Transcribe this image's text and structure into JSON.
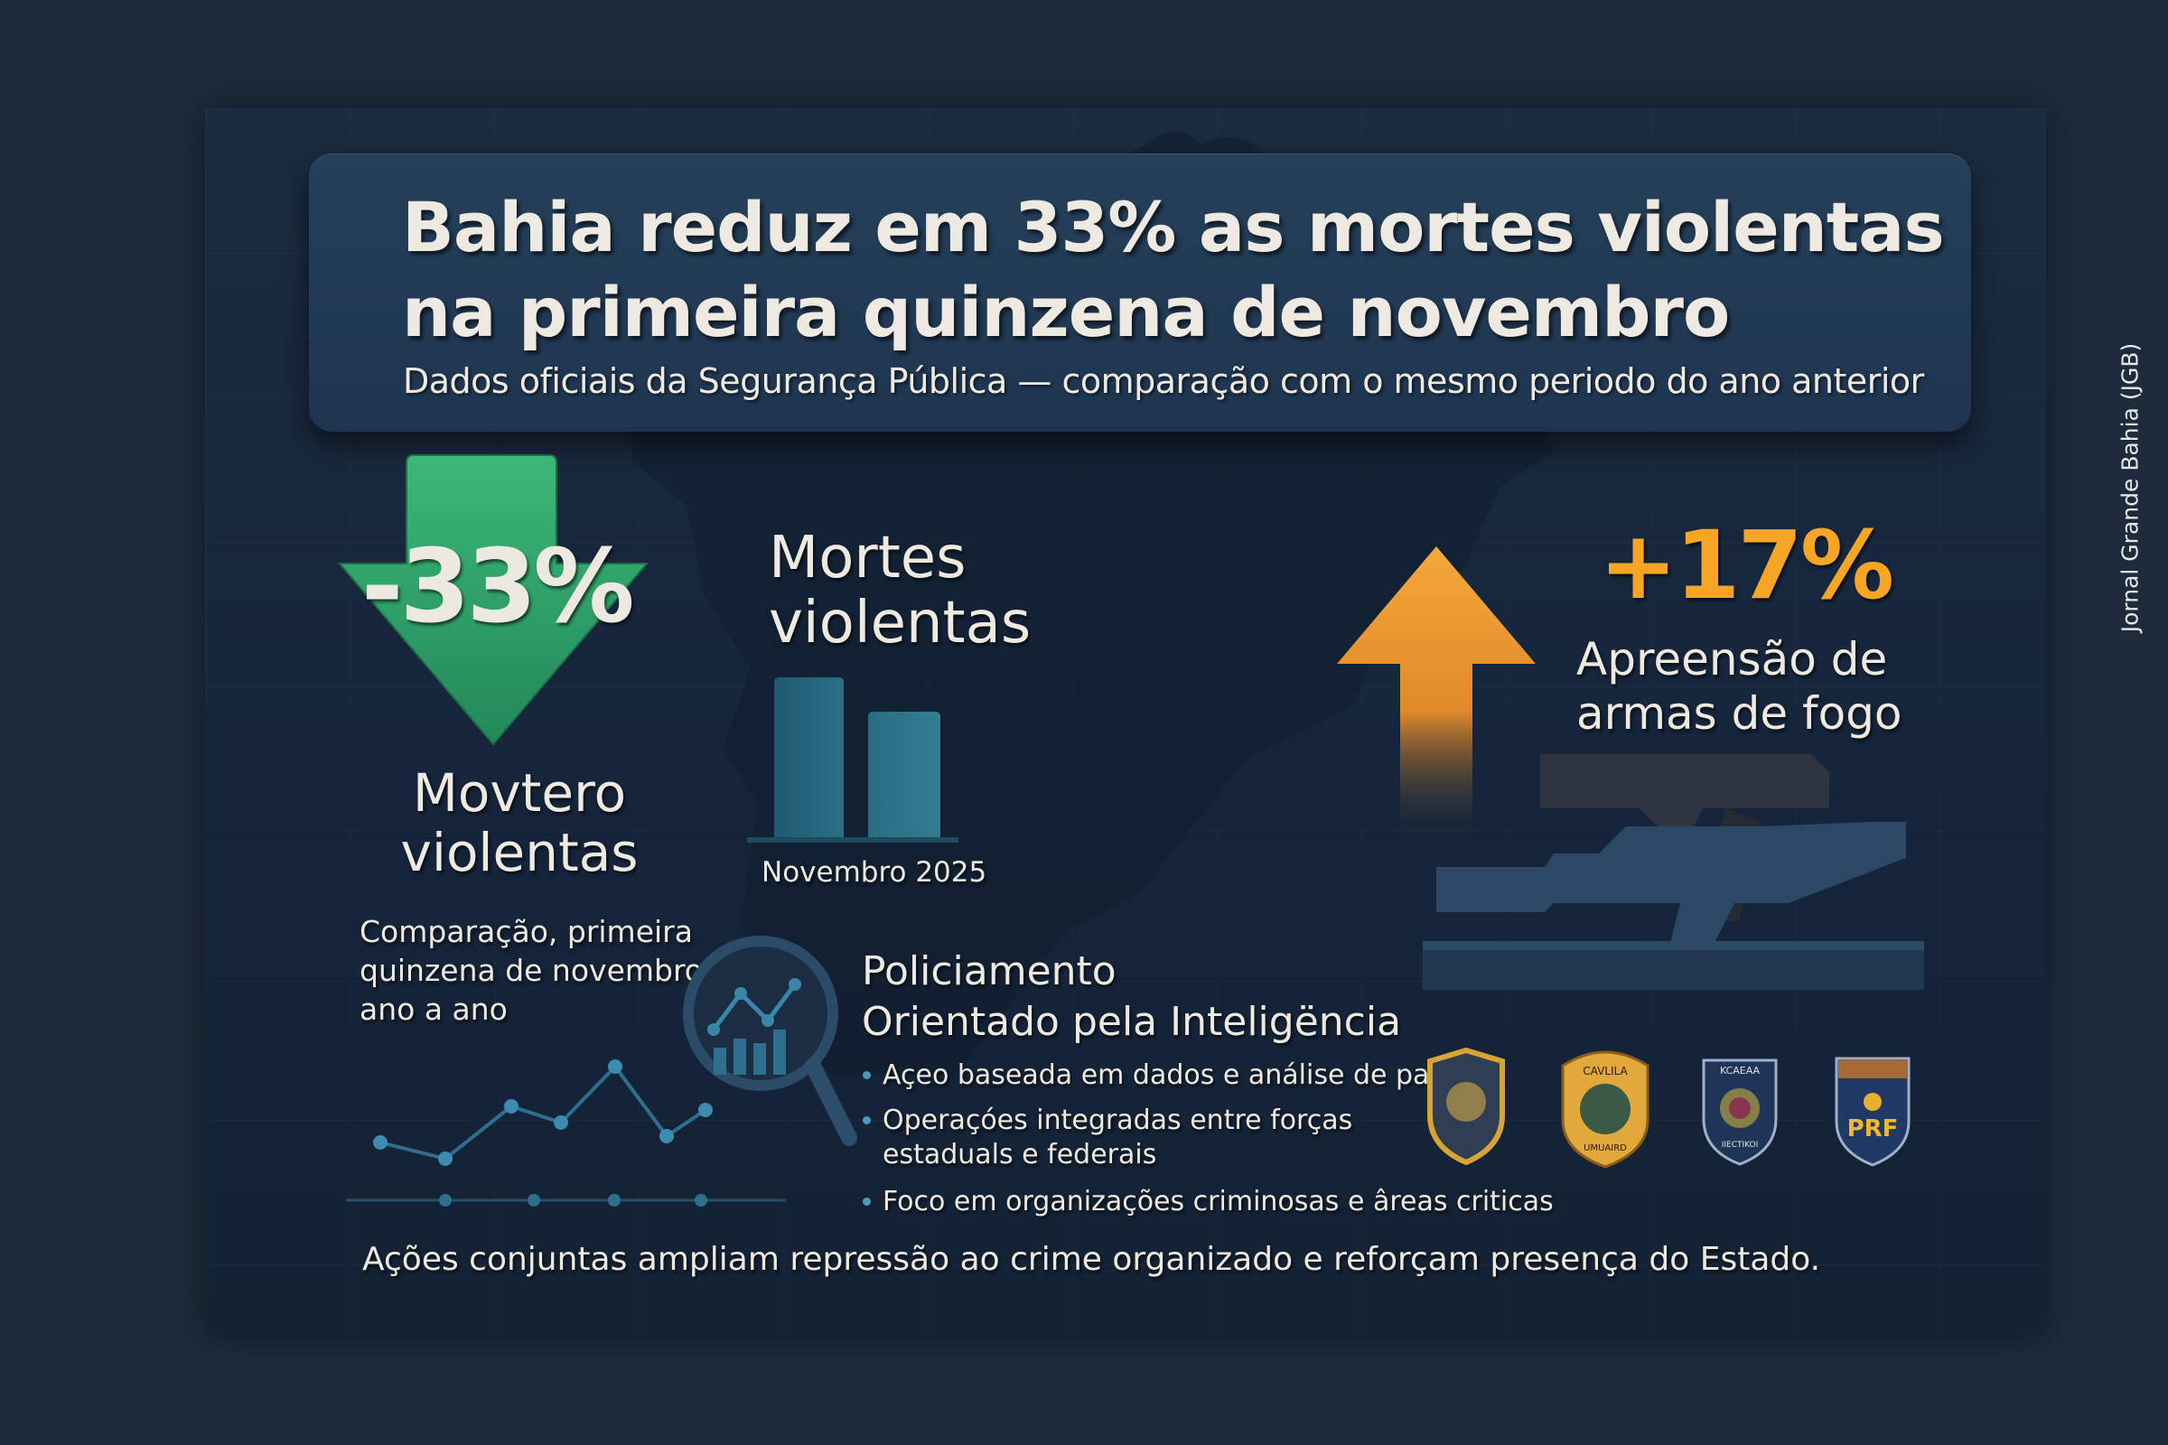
{
  "header": {
    "title_line1": "Bahia reduz em 33% as mortes violentas",
    "title_line2": "na primeira quinzena de novembro",
    "subtitle": "Dados oficiais da Segurança Pública — comparação com o mesmo periodo do ano anterior"
  },
  "left_stat": {
    "value": "-33%",
    "label_line1": "Movtero",
    "label_line2": "violentas",
    "desc_line1": "Comparação, primeira",
    "desc_line2": "quinzena de novembro,",
    "desc_line3": "ano a ano",
    "arrow_color": "#2f9e63"
  },
  "bar_panel": {
    "title_line1": "Mortes",
    "title_line2": "violentas",
    "caption": "Novembro 2025",
    "bar_color": "#2a6a80"
  },
  "right_stat": {
    "value": "+17%",
    "label_line1": "Apreensão de",
    "label_line2": "armas de fogo",
    "accent_color": "#f6a524"
  },
  "policing": {
    "title_line1": "Policiamento",
    "title_line2": "Orientado pela Inteligëncia",
    "bullets": [
      "Açeo baseada em dados e análise de padrões",
      "Operaçóes integradas entre forças",
      "estaduals e federais",
      "Foco em organizações criminosas e âreas criticas"
    ],
    "icon": "magnifier-chart-icon"
  },
  "badges": [
    {
      "icon": "police-badge-icon"
    },
    {
      "icon": "police-badge-icon",
      "top_text": "CAVLILA",
      "bottom_text": "UMUAIRD"
    },
    {
      "icon": "police-badge-icon",
      "top_text": "KCAEAA",
      "bottom_text": "IIECTIKOI"
    },
    {
      "icon": "prf-badge-icon",
      "text": "PRF"
    }
  ],
  "footer": "Ações conjuntas ampliam repressão ao crime organizado e reforçam presença do Estado.",
  "watermark": "Jornal Grande Bahia (JGB)"
}
